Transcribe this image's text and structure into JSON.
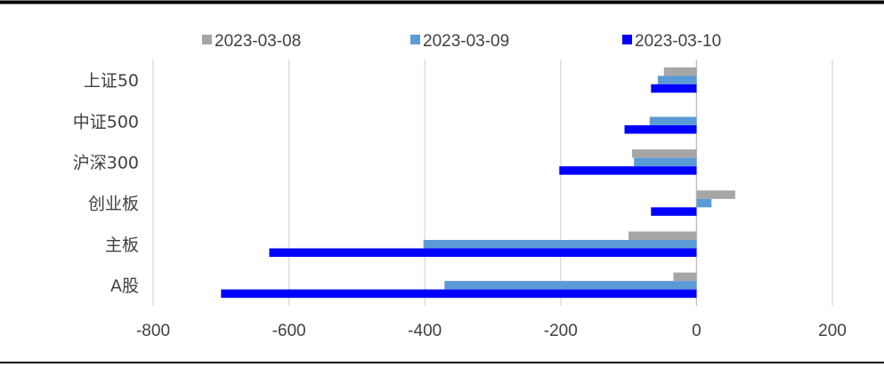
{
  "chart_data": {
    "type": "bar",
    "orientation": "horizontal",
    "categories": [
      "上证50",
      "中证500",
      "沪深300",
      "创业板",
      "主板",
      "A股"
    ],
    "series": [
      {
        "name": "2023-03-08",
        "color": "#a6a6a6",
        "values": [
          -48,
          0,
          -95,
          57,
          -100,
          -34
        ]
      },
      {
        "name": "2023-03-09",
        "color": "#5b9bd5",
        "values": [
          -57,
          -69,
          -92,
          22,
          -402,
          -371
        ]
      },
      {
        "name": "2023-03-10",
        "color": "#0000ff",
        "values": [
          -67,
          -106,
          -202,
          -67,
          -629,
          -700
        ]
      }
    ],
    "xlim": [
      -800,
      200
    ],
    "xticks": [
      -800,
      -600,
      -400,
      -200,
      0,
      200
    ],
    "grid": true,
    "legend_position": "top"
  }
}
